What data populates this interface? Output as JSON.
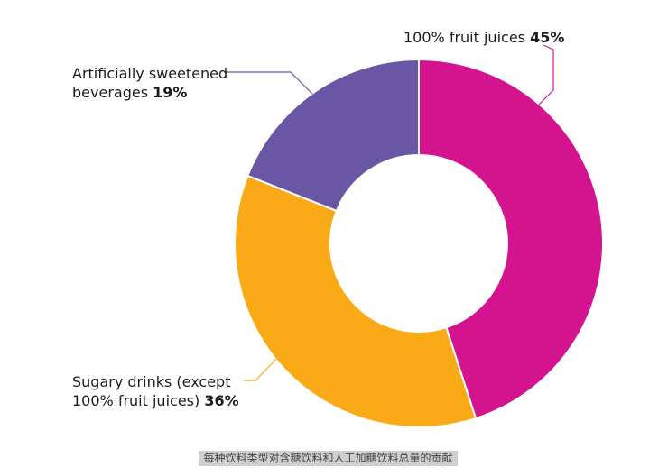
{
  "chart_data": {
    "type": "pie",
    "slices": [
      {
        "name": "100% fruit juices",
        "label_lines": [
          "100% fruit juices"
        ],
        "pct_label": "45%",
        "value": 45,
        "color": "#d4148f"
      },
      {
        "name": "Sugary drinks (except 100% fruit juices)",
        "label_lines": [
          "Sugary drinks (except",
          "100% fruit juices)"
        ],
        "pct_label": "36%",
        "value": 36,
        "color": "#fbaa17"
      },
      {
        "name": "Artificially sweetened beverages",
        "label_lines": [
          "Artificially sweetened",
          "beverages"
        ],
        "pct_label": "19%",
        "value": 19,
        "color": "#6957a5"
      }
    ],
    "donut": true,
    "start": "12 o'clock",
    "direction": "clockwise",
    "legend": "none",
    "label_style": "callout lines"
  },
  "caption": "每种饮料类型对含糖饮料和人工加糖饮料总量的贡献"
}
